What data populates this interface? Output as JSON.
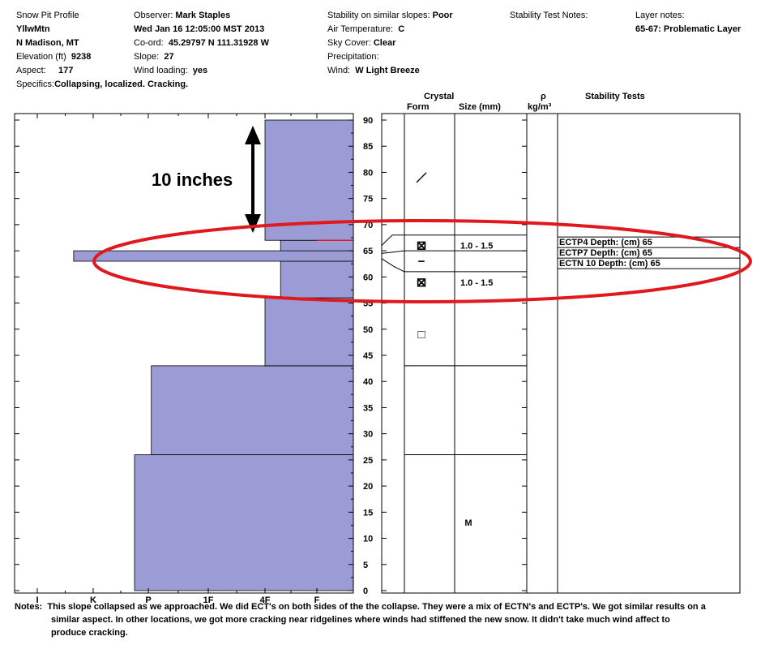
{
  "header": {
    "col1": [
      {
        "label": "Snow Pit Profile",
        "value": ""
      },
      {
        "label": "",
        "value": "YllwMtn"
      },
      {
        "label": "",
        "value": "N Madison, MT"
      },
      {
        "label": "Elevation (ft)",
        "value": "9238"
      },
      {
        "label": "Aspect:",
        "value": "177"
      }
    ],
    "col2": [
      {
        "label": "Observer:",
        "value": "Mark Staples"
      },
      {
        "label": "",
        "value": "Wed Jan 16 12:05:00 MST 2013"
      },
      {
        "label": "Co-ord:",
        "value": "45.29797 N 111.31928 W"
      },
      {
        "label": "Slope:",
        "value": "27"
      },
      {
        "label": "Wind loading:",
        "value": "yes"
      }
    ],
    "col3": [
      {
        "label": "Stability on similar slopes:",
        "value": "Poor"
      },
      {
        "label": "Air Temperature:",
        "value": "C"
      },
      {
        "label": "Sky Cover:",
        "value": "Clear"
      },
      {
        "label": "Precipitation:",
        "value": ""
      },
      {
        "label": "Wind:",
        "value": "W Light Breeze"
      }
    ],
    "stability_test_notes_label": "Stability Test Notes:",
    "layer_notes_label": "Layer notes:",
    "layer_notes_value": "65-67: Problematic Layer",
    "specifics_label": "Specifics:",
    "specifics_value": "Collapsing, localized. Cracking."
  },
  "columns": {
    "crystal": "Crystal",
    "form": "Form",
    "size": "Size (mm)",
    "rho": "ρ",
    "rho_unit": "kg/m³",
    "stability_tests": "Stability Tests"
  },
  "annotation": {
    "label": "10 inches",
    "arrow_color": "#000000",
    "ellipse_color": "#e0191e"
  },
  "chart_data": {
    "type": "bar",
    "orientation": "horizontal",
    "xlabel": "",
    "ylabel": "",
    "hardness_ticks": [
      "I",
      "K",
      "P",
      "1F",
      "4F",
      "F"
    ],
    "depth_ticks": [
      "0",
      "5",
      "10",
      "15",
      "20",
      "25",
      "30",
      "35",
      "40",
      "45",
      "50",
      "55",
      "60",
      "65",
      "70",
      "75",
      "80",
      "85",
      "90"
    ],
    "ylim": [
      0,
      90
    ],
    "bar_color": "#9b9bd6",
    "layers": [
      {
        "bottom": 0,
        "top": 26,
        "hardness": 3.25
      },
      {
        "bottom": 26,
        "top": 43,
        "hardness": 2.95
      },
      {
        "bottom": 43,
        "top": 56,
        "hardness": 1.0
      },
      {
        "bottom": 56,
        "top": 63,
        "hardness": 0.7
      },
      {
        "bottom": 63,
        "top": 65,
        "hardness": 4.35
      },
      {
        "bottom": 65,
        "top": 67,
        "hardness": 0.7
      },
      {
        "bottom": 67,
        "top": 90,
        "hardness": 1.0
      }
    ],
    "red_marker_depth": 67,
    "layer_boundaries": [
      26,
      43,
      61,
      65,
      68
    ],
    "crystals": [
      {
        "depth": 66,
        "symbol": "⊠",
        "size": "1.0 - 1.5"
      },
      {
        "depth": 63,
        "symbol": "−",
        "size": ""
      },
      {
        "depth": 59,
        "symbol": "⊠",
        "size": "1.0 - 1.5"
      },
      {
        "depth": 49,
        "symbol": "□",
        "size": ""
      },
      {
        "depth": 13,
        "symbol": "",
        "size": "M"
      }
    ],
    "crystal_line_symbol_depth": 79,
    "stability_tests": [
      {
        "depth": 65,
        "text": "ECTP4  Depth: (cm) 65"
      },
      {
        "depth": 65,
        "text": "ECTP7  Depth: (cm) 65"
      },
      {
        "depth": 65,
        "text": "ECTN 10  Depth: (cm) 65"
      }
    ]
  },
  "notes": {
    "label": "Notes:",
    "line1": "This slope collapsed as we approached.  We did ECT's on both sides of the the collapse.  They were a mix of ECTN's and ECTP's.  We got similar results on a",
    "line2": "similar aspect.  In other locations, we got more cracking near ridgelines where winds had stiffened the new snow.  It didn't take much wind affect to",
    "line3": "produce cracking."
  }
}
